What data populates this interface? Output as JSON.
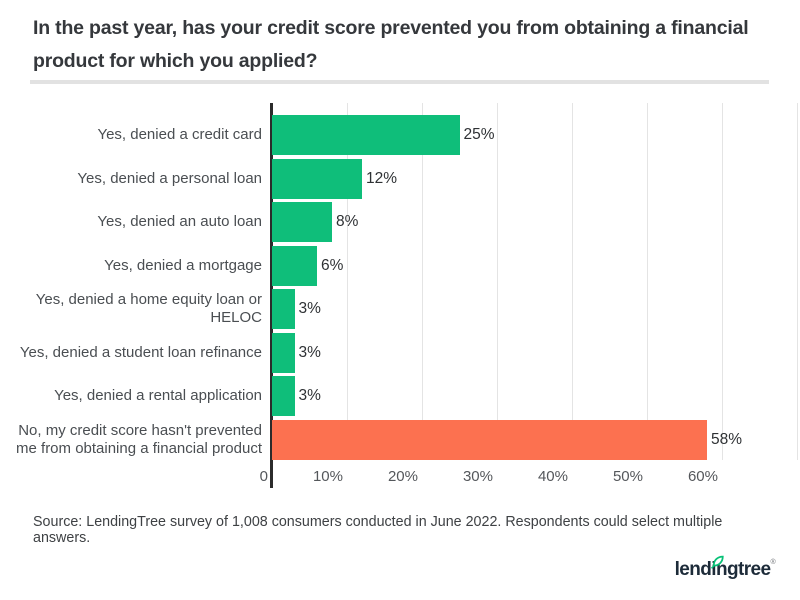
{
  "page": {
    "title": "In the past year, has your credit score prevented you from obtaining a financial product for which you applied?",
    "source": "Source: LendingTree survey of 1,008 consumers conducted in June 2022. Respondents could select multiple answers.",
    "logo_text": "lendingtree",
    "logo_trademark": "®"
  },
  "colors": {
    "bar_green": "#0fbe7a",
    "bar_orange": "#fc7150",
    "axis_line": "#2b2b2b",
    "gridline": "#e4e4e4",
    "divider": "#e2e2e2",
    "logo_navy": "#1d2b39",
    "logo_leaf_green": "#08c177"
  },
  "chart_data": {
    "type": "bar",
    "orientation": "horizontal",
    "categories": [
      "Yes, denied a credit card",
      "Yes, denied a personal loan",
      "Yes, denied an auto loan",
      "Yes, denied a mortgage",
      "Yes, denied a home equity loan or HELOC",
      "Yes, denied a student loan refinance",
      "Yes, denied a rental application",
      "No, my credit score hasn't prevented me from obtaining a financial product"
    ],
    "values": [
      25,
      12,
      8,
      6,
      3,
      3,
      3,
      58
    ],
    "value_labels": [
      "25%",
      "12%",
      "8%",
      "6%",
      "3%",
      "3%",
      "3%",
      "58%"
    ],
    "bar_colors": [
      "#0fbe7a",
      "#0fbe7a",
      "#0fbe7a",
      "#0fbe7a",
      "#0fbe7a",
      "#0fbe7a",
      "#0fbe7a",
      "#fc7150"
    ],
    "x_ticks": [
      "0",
      "10%",
      "20%",
      "30%",
      "40%",
      "50%",
      "60%"
    ],
    "xlim": [
      0,
      70
    ],
    "tick_step": 10,
    "grid": true,
    "legend": false,
    "xlabel": "",
    "ylabel": ""
  }
}
